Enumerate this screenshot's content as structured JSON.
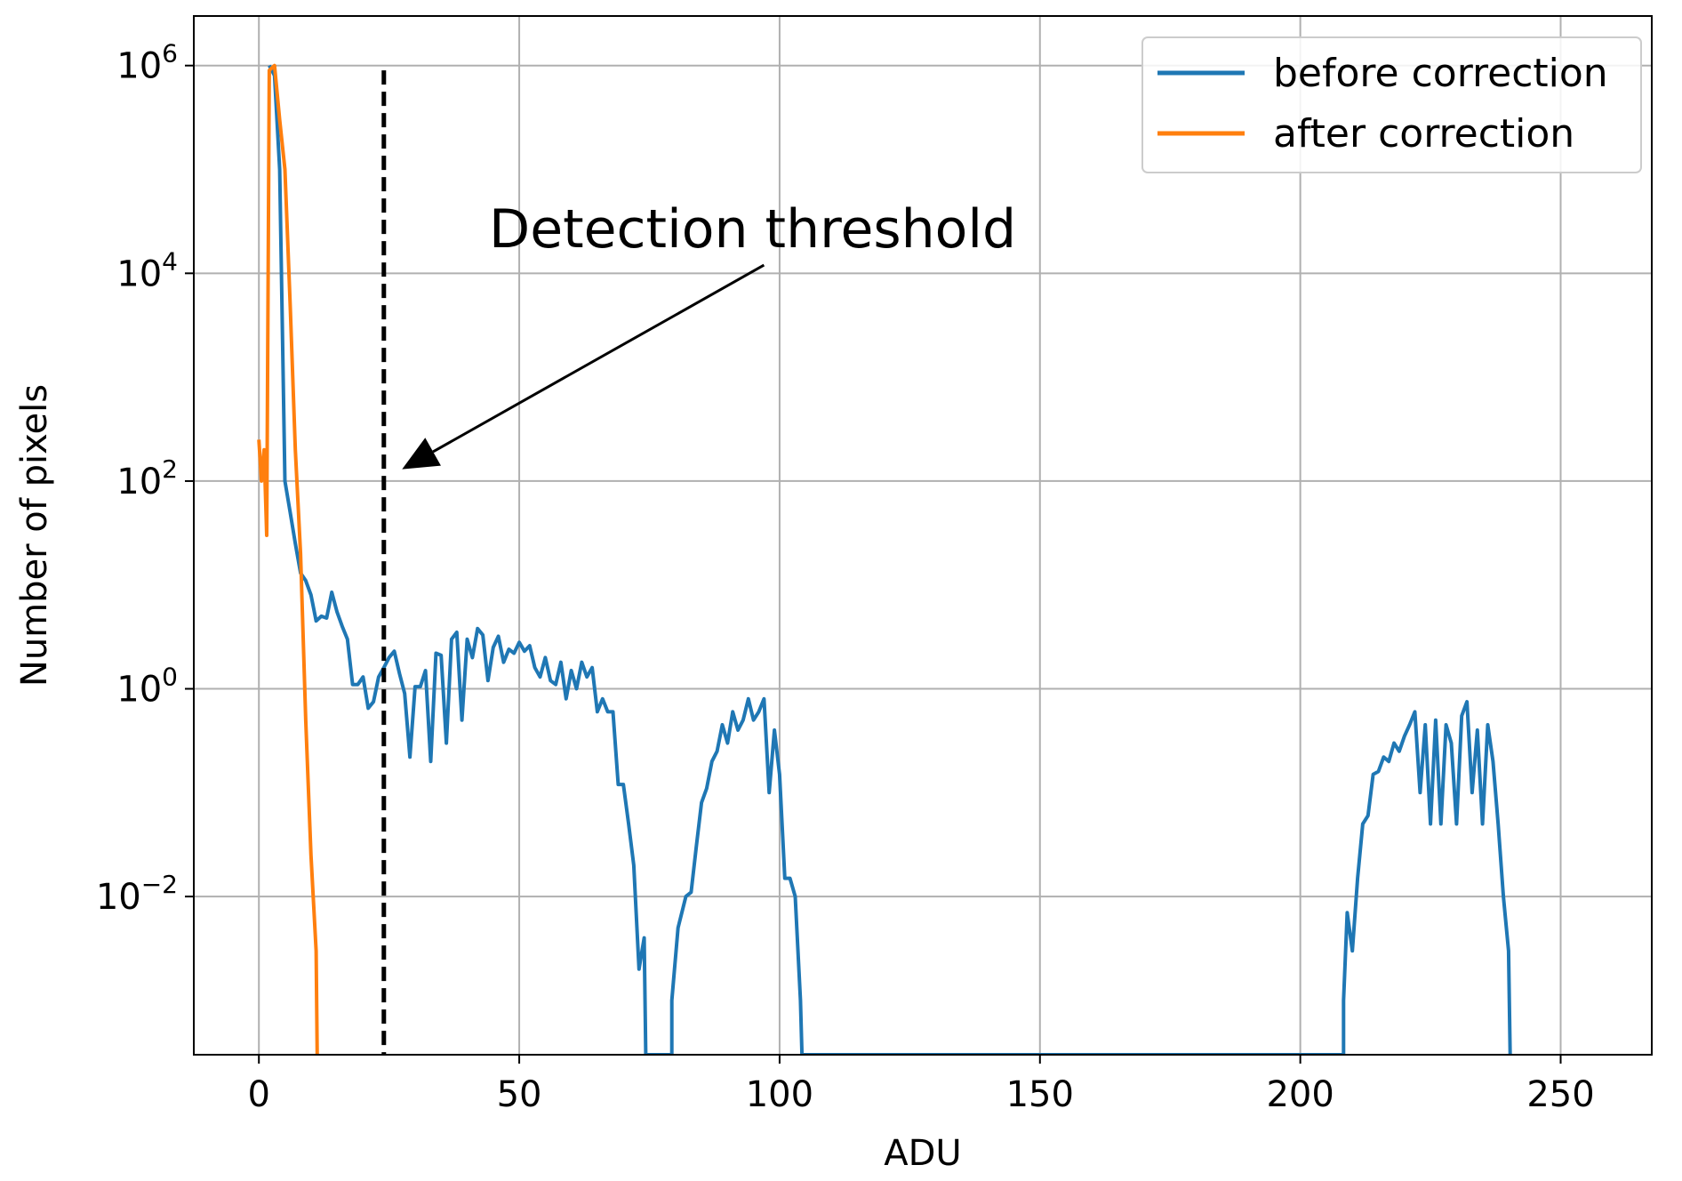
{
  "chart_data": {
    "type": "line",
    "title": "",
    "xlabel": "ADU",
    "ylabel": "Number of pixels",
    "xlim": [
      -12.5,
      267.5
    ],
    "ylim": [
      0.0003,
      3000000
    ],
    "yscale": "log",
    "grid": true,
    "legend_position": "top-right",
    "x_ticks": [
      0,
      50,
      100,
      150,
      200,
      250
    ],
    "x_tick_labels": [
      "0",
      "50",
      "100",
      "150",
      "200",
      "250"
    ],
    "y_ticks": [
      {
        "value": 1000000,
        "base": "10",
        "exp": "6"
      },
      {
        "value": 10000,
        "base": "10",
        "exp": "4"
      },
      {
        "value": 100,
        "base": "10",
        "exp": "2"
      },
      {
        "value": 1,
        "base": "10",
        "exp": "0"
      },
      {
        "value": 0.01,
        "base": "10",
        "exp": "−2"
      }
    ],
    "series": [
      {
        "name": "before correction",
        "color": "#1f77b4",
        "points": [
          [
            2,
            1000000
          ],
          [
            3,
            800000
          ],
          [
            4,
            100000
          ],
          [
            5,
            100
          ],
          [
            6,
            50
          ],
          [
            7,
            25
          ],
          [
            8,
            13
          ],
          [
            9,
            11
          ],
          [
            10,
            8
          ],
          [
            11,
            4.5
          ],
          [
            12,
            5
          ],
          [
            13,
            4.8
          ],
          [
            14,
            8.5
          ],
          [
            15,
            5.5
          ],
          [
            16,
            4
          ],
          [
            17,
            3
          ],
          [
            18,
            1.1
          ],
          [
            19,
            1.1
          ],
          [
            20,
            1.3
          ],
          [
            21,
            0.65
          ],
          [
            22,
            0.75
          ],
          [
            23,
            1.3
          ],
          [
            24,
            1.6
          ],
          [
            25,
            2
          ],
          [
            26,
            2.3
          ],
          [
            27,
            1.4
          ],
          [
            28,
            0.9
          ],
          [
            29,
            0.22
          ],
          [
            30,
            1.05
          ],
          [
            31,
            1.05
          ],
          [
            32,
            1.5
          ],
          [
            33,
            0.2
          ],
          [
            34,
            2.2
          ],
          [
            35,
            2.1
          ],
          [
            36,
            0.3
          ],
          [
            37,
            3
          ],
          [
            38,
            3.5
          ],
          [
            39,
            0.5
          ],
          [
            40,
            3
          ],
          [
            41,
            2
          ],
          [
            42,
            3.8
          ],
          [
            43,
            3.3
          ],
          [
            44,
            1.2
          ],
          [
            45,
            2.5
          ],
          [
            46,
            3.2
          ],
          [
            47,
            1.8
          ],
          [
            48,
            2.4
          ],
          [
            49,
            2.2
          ],
          [
            50,
            2.8
          ],
          [
            51,
            2.3
          ],
          [
            52,
            2.6
          ],
          [
            53,
            1.6
          ],
          [
            54,
            1.3
          ],
          [
            55,
            2
          ],
          [
            56,
            1.2
          ],
          [
            57,
            1.1
          ],
          [
            58,
            1.8
          ],
          [
            59,
            0.8
          ],
          [
            60,
            1.5
          ],
          [
            61,
            1
          ],
          [
            62,
            1.8
          ],
          [
            63,
            1.3
          ],
          [
            64,
            1.6
          ],
          [
            65,
            0.6
          ],
          [
            66,
            0.8
          ],
          [
            67,
            0.6
          ],
          [
            68,
            0.6
          ],
          [
            69,
            0.12
          ],
          [
            70,
            0.12
          ],
          [
            71,
            0.05
          ],
          [
            72,
            0.02
          ],
          [
            73,
            0.002
          ],
          [
            74,
            0.004
          ],
          [
            74.3,
            0.0003
          ],
          [
            79.3,
            0.0003
          ],
          [
            79.3,
            0.001
          ],
          [
            80.5,
            0.005
          ],
          [
            82,
            0.01
          ],
          [
            83,
            0.011
          ],
          [
            84,
            0.03
          ],
          [
            85,
            0.08
          ],
          [
            86,
            0.11
          ],
          [
            87,
            0.2
          ],
          [
            88,
            0.25
          ],
          [
            89,
            0.45
          ],
          [
            90,
            0.3
          ],
          [
            91,
            0.6
          ],
          [
            92,
            0.4
          ],
          [
            93,
            0.5
          ],
          [
            94,
            0.8
          ],
          [
            95,
            0.5
          ],
          [
            96,
            0.6
          ],
          [
            97,
            0.8
          ],
          [
            98,
            0.1
          ],
          [
            99,
            0.4
          ],
          [
            100,
            0.15
          ],
          [
            101,
            0.015
          ],
          [
            102,
            0.015
          ],
          [
            103,
            0.01
          ],
          [
            104,
            0.001
          ],
          [
            104.3,
            0.0003
          ],
          [
            208.3,
            0.0003
          ],
          [
            208.3,
            0.001
          ],
          [
            209,
            0.007
          ],
          [
            210,
            0.003
          ],
          [
            211,
            0.015
          ],
          [
            212,
            0.05
          ],
          [
            213,
            0.06
          ],
          [
            214,
            0.15
          ],
          [
            215,
            0.16
          ],
          [
            216,
            0.22
          ],
          [
            217,
            0.2
          ],
          [
            218,
            0.3
          ],
          [
            219,
            0.25
          ],
          [
            220,
            0.35
          ],
          [
            221,
            0.45
          ],
          [
            222,
            0.6
          ],
          [
            223,
            0.1
          ],
          [
            224,
            0.45
          ],
          [
            225,
            0.05
          ],
          [
            226,
            0.5
          ],
          [
            227,
            0.05
          ],
          [
            228,
            0.45
          ],
          [
            229,
            0.3
          ],
          [
            230,
            0.05
          ],
          [
            231,
            0.55
          ],
          [
            232,
            0.75
          ],
          [
            233,
            0.1
          ],
          [
            234,
            0.4
          ],
          [
            235,
            0.05
          ],
          [
            236,
            0.45
          ],
          [
            237,
            0.2
          ],
          [
            238,
            0.05
          ],
          [
            239,
            0.01
          ],
          [
            240,
            0.003
          ],
          [
            240.3,
            0.0003
          ]
        ]
      },
      {
        "name": "after correction",
        "color": "#ff7f0e",
        "points": [
          [
            0,
            250
          ],
          [
            0.5,
            100
          ],
          [
            1,
            200
          ],
          [
            1.5,
            30
          ],
          [
            2,
            900000
          ],
          [
            3,
            1000000
          ],
          [
            4,
            300000
          ],
          [
            5,
            100000
          ],
          [
            6,
            5000
          ],
          [
            7,
            200
          ],
          [
            8,
            20
          ],
          [
            9,
            0.5
          ],
          [
            10,
            0.025
          ],
          [
            11,
            0.003
          ],
          [
            11.2,
            0.0003
          ]
        ]
      }
    ],
    "threshold_line": {
      "x": 24,
      "style": "dashed",
      "color": "#000000"
    },
    "annotations": [
      {
        "text": "Detection threshold",
        "arrow_from": [
          97,
          12000
        ],
        "arrow_to": [
          27.5,
          130
        ]
      }
    ]
  }
}
